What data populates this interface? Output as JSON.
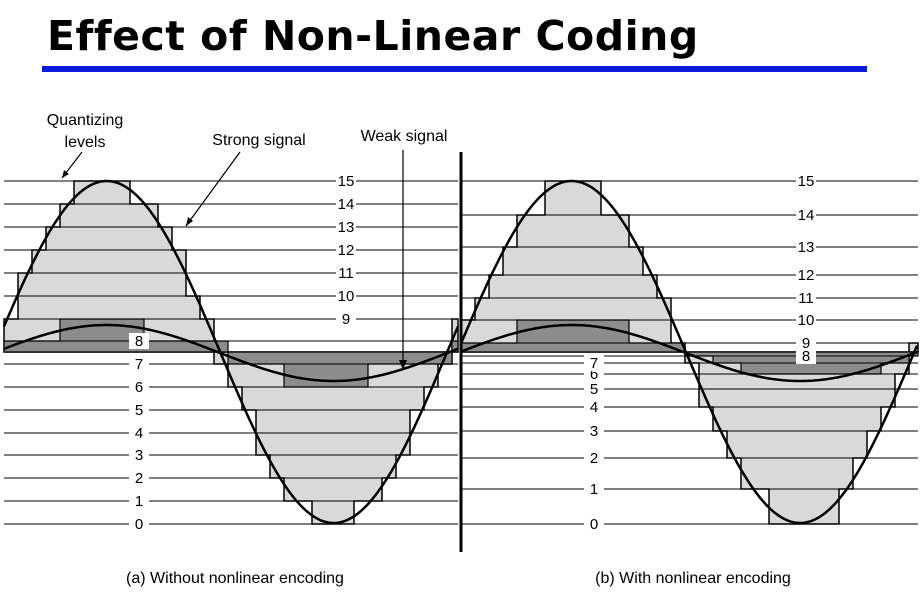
{
  "title": "Effect of Non-Linear Coding",
  "callouts": {
    "quantizing_line1": "Quantizing",
    "quantizing_line2": "levels",
    "strong": "Strong signal",
    "weak": "Weak signal"
  },
  "captions": {
    "left": "(a) Without nonlinear encoding",
    "right": "(b) With nonlinear encoding"
  },
  "levels": [
    "0",
    "1",
    "2",
    "3",
    "4",
    "5",
    "6",
    "7",
    "8",
    "9",
    "10",
    "11",
    "12",
    "13",
    "14",
    "15"
  ],
  "colors": {
    "accent_rule": "#0a1adc",
    "strong_fill": "#d9d9d9",
    "weak_fill": "#8c8c8c",
    "line": "#000000"
  }
}
